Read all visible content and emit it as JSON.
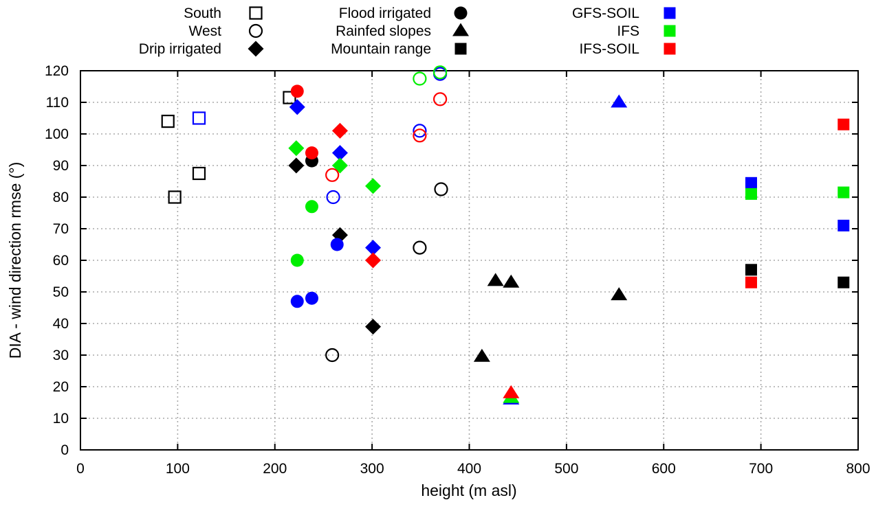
{
  "chart_data": {
    "type": "scatter",
    "title": "",
    "xlabel": "height (m asl)",
    "ylabel": "DIA - wind direction rmse (°)",
    "xlim": [
      0,
      800
    ],
    "ylim": [
      0,
      120
    ],
    "xticks": [
      0,
      100,
      200,
      300,
      400,
      500,
      600,
      700,
      800
    ],
    "yticks": [
      0,
      10,
      20,
      30,
      40,
      50,
      60,
      70,
      80,
      90,
      100,
      110,
      120
    ],
    "grid": true,
    "legend_position": "top",
    "legend": {
      "site_markers": [
        {
          "label": "South",
          "shape": "square-open"
        },
        {
          "label": "West",
          "shape": "circle-open"
        },
        {
          "label": "Drip irrigated",
          "shape": "diamond"
        },
        {
          "label": "Flood irrigated",
          "shape": "circle"
        },
        {
          "label": "Rainfed slopes",
          "shape": "triangle"
        },
        {
          "label": "Mountain range",
          "shape": "square"
        }
      ],
      "model_colors": [
        {
          "label": "GFS-SOIL",
          "color": "blue"
        },
        {
          "label": "IFS",
          "color": "green"
        },
        {
          "label": "IFS-SOIL",
          "color": "red"
        }
      ]
    },
    "palette": {
      "black": "#000000",
      "blue": "#0000ff",
      "green": "#00ee00",
      "red": "#ff0000"
    },
    "points": [
      {
        "shape": "square-open",
        "color": "black",
        "x": 90,
        "y": 104
      },
      {
        "shape": "square-open",
        "color": "black",
        "x": 122,
        "y": 87.5
      },
      {
        "shape": "square-open",
        "color": "black",
        "x": 97,
        "y": 80
      },
      {
        "shape": "square-open",
        "color": "black",
        "x": 215,
        "y": 111.5
      },
      {
        "shape": "circle-open",
        "color": "black",
        "x": 371,
        "y": 82.5
      },
      {
        "shape": "circle-open",
        "color": "black",
        "x": 349,
        "y": 64
      },
      {
        "shape": "circle-open",
        "color": "black",
        "x": 259,
        "y": 30
      },
      {
        "shape": "circle",
        "color": "black",
        "x": 238,
        "y": 91.5
      },
      {
        "shape": "diamond",
        "color": "black",
        "x": 222,
        "y": 90
      },
      {
        "shape": "diamond",
        "color": "black",
        "x": 267,
        "y": 68
      },
      {
        "shape": "diamond",
        "color": "black",
        "x": 301,
        "y": 39
      },
      {
        "shape": "triangle",
        "color": "black",
        "x": 427,
        "y": 53.5
      },
      {
        "shape": "triangle",
        "color": "black",
        "x": 443,
        "y": 53
      },
      {
        "shape": "triangle",
        "color": "black",
        "x": 554,
        "y": 49
      },
      {
        "shape": "triangle",
        "color": "black",
        "x": 413,
        "y": 29.5
      },
      {
        "shape": "square",
        "color": "black",
        "x": 690,
        "y": 57
      },
      {
        "shape": "square",
        "color": "black",
        "x": 785,
        "y": 53
      },
      {
        "shape": "square-open",
        "color": "blue",
        "x": 122,
        "y": 105
      },
      {
        "shape": "circle-open",
        "color": "blue",
        "x": 370,
        "y": 119
      },
      {
        "shape": "circle-open",
        "color": "blue",
        "x": 349,
        "y": 101
      },
      {
        "shape": "circle-open",
        "color": "blue",
        "x": 260,
        "y": 80
      },
      {
        "shape": "circle",
        "color": "blue",
        "x": 264,
        "y": 65
      },
      {
        "shape": "circle",
        "color": "blue",
        "x": 223,
        "y": 47
      },
      {
        "shape": "circle",
        "color": "blue",
        "x": 238,
        "y": 48
      },
      {
        "shape": "diamond",
        "color": "blue",
        "x": 223,
        "y": 108.5
      },
      {
        "shape": "diamond",
        "color": "blue",
        "x": 267,
        "y": 94
      },
      {
        "shape": "diamond",
        "color": "blue",
        "x": 301,
        "y": 64
      },
      {
        "shape": "triangle",
        "color": "blue",
        "x": 554,
        "y": 110
      },
      {
        "shape": "triangle",
        "color": "blue",
        "x": 443,
        "y": 16
      },
      {
        "shape": "square",
        "color": "blue",
        "x": 690,
        "y": 84.5
      },
      {
        "shape": "square",
        "color": "blue",
        "x": 785,
        "y": 71
      },
      {
        "shape": "circle-open",
        "color": "green",
        "x": 349,
        "y": 117.5
      },
      {
        "shape": "circle-open",
        "color": "green",
        "x": 370,
        "y": 119.5
      },
      {
        "shape": "circle",
        "color": "green",
        "x": 238,
        "y": 77
      },
      {
        "shape": "circle",
        "color": "green",
        "x": 223,
        "y": 60
      },
      {
        "shape": "diamond",
        "color": "green",
        "x": 222,
        "y": 95.5
      },
      {
        "shape": "diamond",
        "color": "green",
        "x": 267,
        "y": 90
      },
      {
        "shape": "diamond",
        "color": "green",
        "x": 301,
        "y": 83.5
      },
      {
        "shape": "triangle",
        "color": "green",
        "x": 443,
        "y": 16.5
      },
      {
        "shape": "square",
        "color": "green",
        "x": 690,
        "y": 81
      },
      {
        "shape": "square",
        "color": "green",
        "x": 785,
        "y": 81.5
      },
      {
        "shape": "circle-open",
        "color": "red",
        "x": 370,
        "y": 111
      },
      {
        "shape": "circle-open",
        "color": "red",
        "x": 349,
        "y": 99.5
      },
      {
        "shape": "circle-open",
        "color": "red",
        "x": 259,
        "y": 87
      },
      {
        "shape": "circle",
        "color": "red",
        "x": 223,
        "y": 113.5
      },
      {
        "shape": "circle",
        "color": "red",
        "x": 238,
        "y": 94
      },
      {
        "shape": "diamond",
        "color": "red",
        "x": 267,
        "y": 101
      },
      {
        "shape": "diamond",
        "color": "red",
        "x": 301,
        "y": 60
      },
      {
        "shape": "triangle",
        "color": "red",
        "x": 443,
        "y": 18
      },
      {
        "shape": "square",
        "color": "red",
        "x": 785,
        "y": 103
      },
      {
        "shape": "square",
        "color": "red",
        "x": 690,
        "y": 53
      }
    ]
  }
}
